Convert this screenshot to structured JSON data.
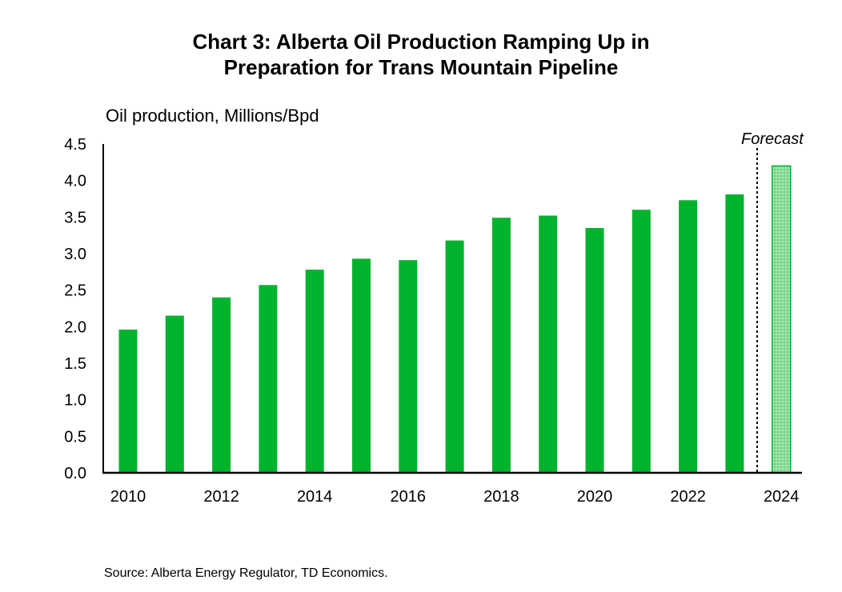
{
  "chart_data": {
    "type": "bar",
    "title_lines": [
      "Chart 3: Alberta Oil Production Ramping Up in",
      "Preparation for Trans Mountain Pipeline"
    ],
    "ylabel": "Oil production, Millions/Bpd",
    "xlabel": "",
    "categories": [
      "2010",
      "2011",
      "2012",
      "2013",
      "2014",
      "2015",
      "2016",
      "2017",
      "2018",
      "2019",
      "2020",
      "2021",
      "2022",
      "2023",
      "2024"
    ],
    "values": [
      1.96,
      2.15,
      2.4,
      2.57,
      2.78,
      2.93,
      2.91,
      3.18,
      3.49,
      3.52,
      3.35,
      3.6,
      3.73,
      3.81,
      4.2
    ],
    "forecast_from": "2024",
    "annotation": "Forecast",
    "x_tick_labels": [
      "2010",
      "2012",
      "2014",
      "2016",
      "2018",
      "2020",
      "2022",
      "2024"
    ],
    "y_ticks": [
      "0.0",
      "0.5",
      "1.0",
      "1.5",
      "2.0",
      "2.5",
      "3.0",
      "3.5",
      "4.0",
      "4.5"
    ],
    "ylim": [
      0,
      4.5
    ],
    "grid": false,
    "legend": "none",
    "bar_color": "#00b32c",
    "forecast_color": "#7fd98f",
    "source": "Source: Alberta Energy Regulator, TD Economics."
  }
}
